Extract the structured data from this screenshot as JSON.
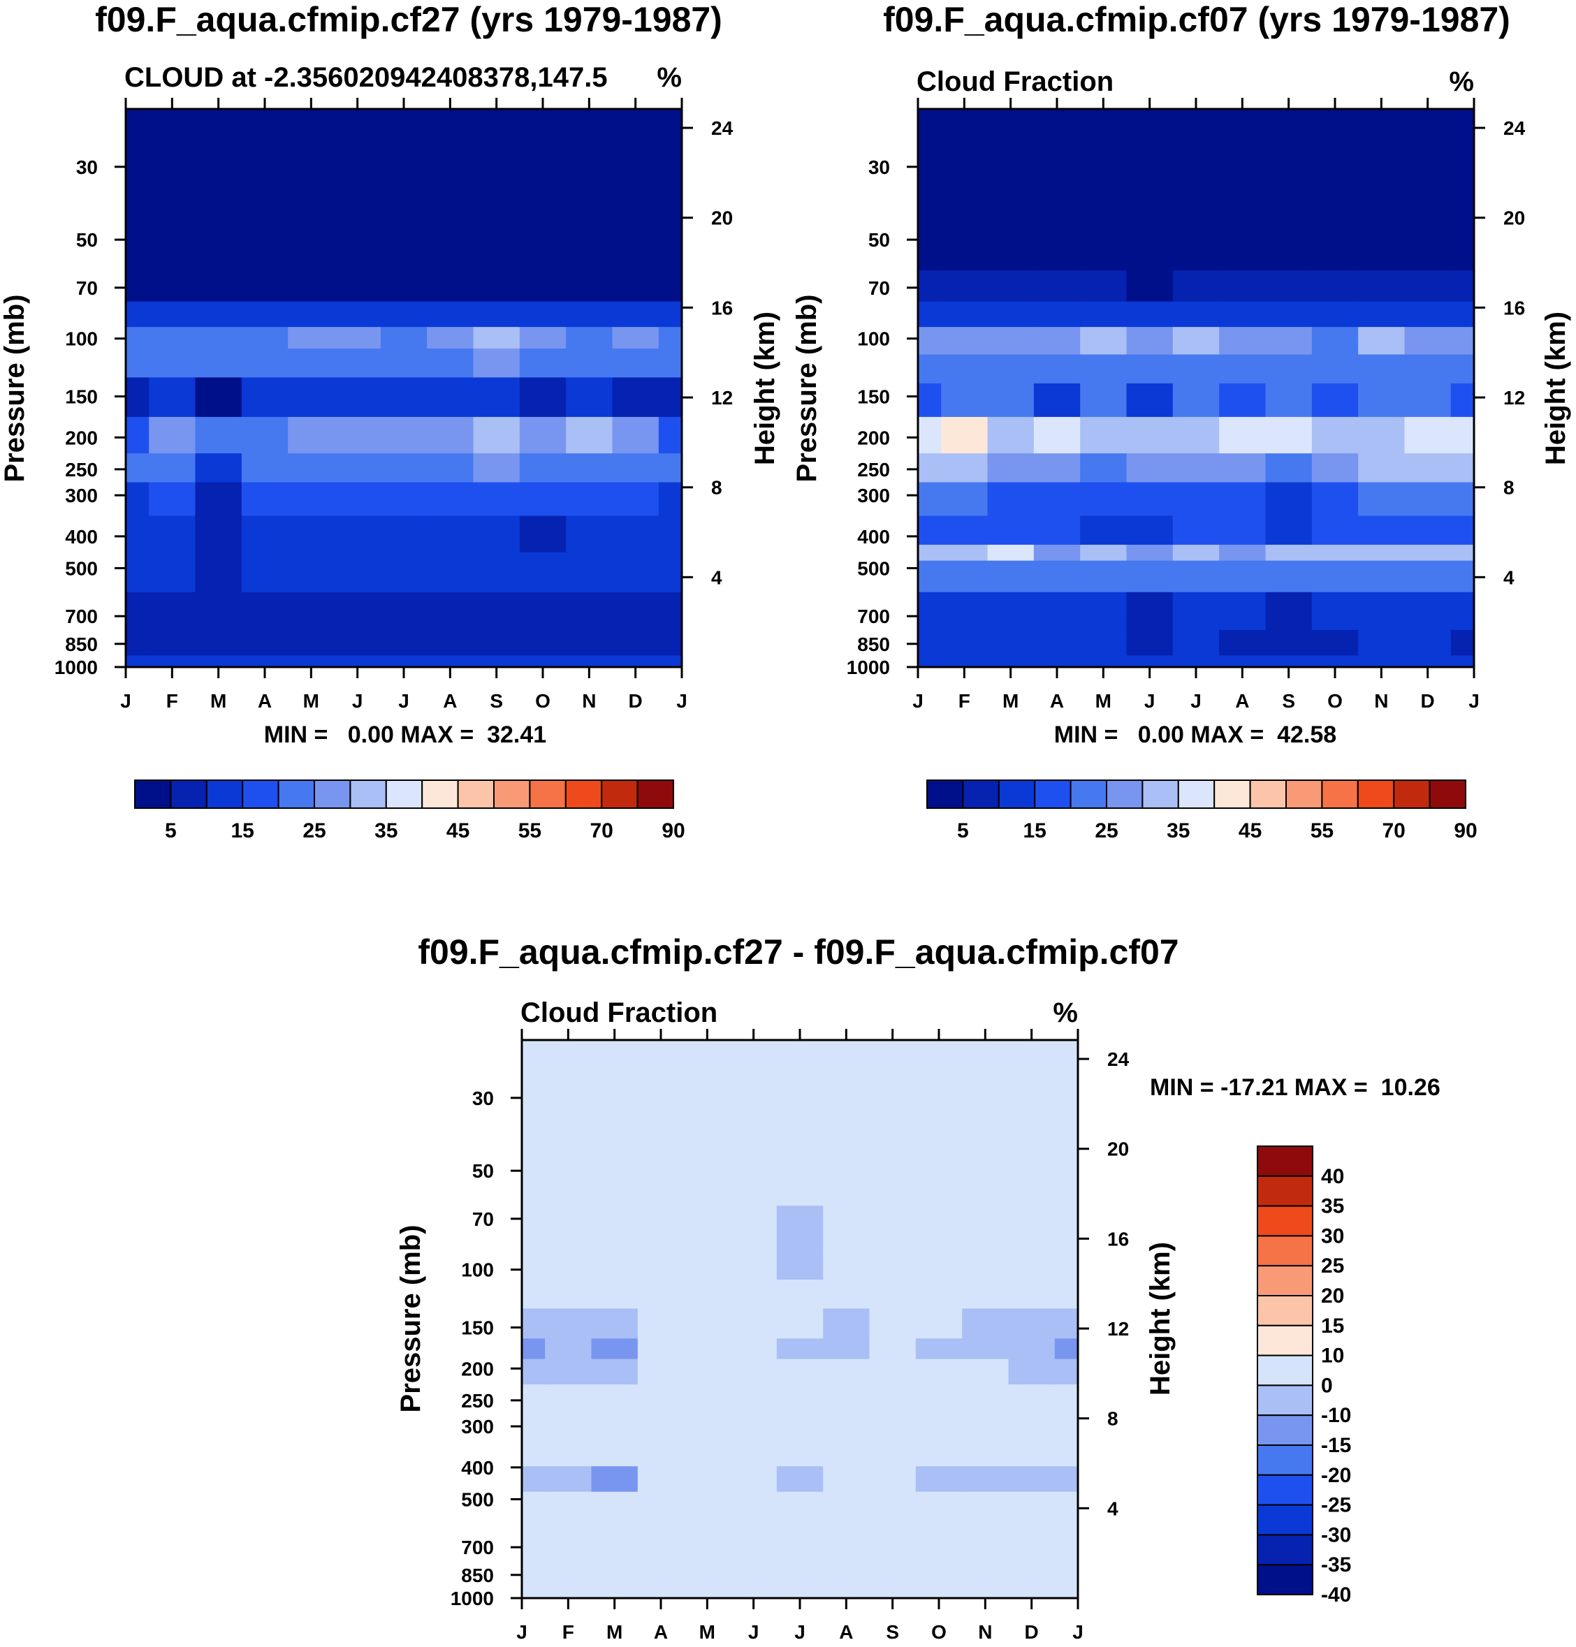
{
  "palette_cloud": [
    "#00108a",
    "#0522b0",
    "#0a39d6",
    "#1e50f0",
    "#4678f0",
    "#7896f0",
    "#a9bff5",
    "#dbe6fc",
    "#fde7d8",
    "#fcc5a9",
    "#f99a77",
    "#f57346",
    "#ee4a1c",
    "#c22a0d",
    "#8f0b0b"
  ],
  "palette_diff": [
    "#00108a",
    "#0522b0",
    "#0a39d6",
    "#1e50f0",
    "#4678f0",
    "#7896f0",
    "#a9bff5",
    "#d5e4fa",
    "#fde7d8",
    "#fcc5a9",
    "#f99a77",
    "#f57346",
    "#ee4a1c",
    "#c22a0d",
    "#8f0b0b"
  ],
  "chart_data": [
    {
      "id": "panel1",
      "type": "contour",
      "title": "f09.F_aqua.cfmip.cf27 (yrs 1979-1987)",
      "subtitle_left": "CLOUD at -2.356020942408378,147.5",
      "subtitle_right": "%",
      "xlabel": "",
      "ylabel": "Pressure (mb)",
      "ylabel_right": "Height (km)",
      "x_ticks": [
        "J",
        "F",
        "M",
        "A",
        "M",
        "J",
        "J",
        "A",
        "S",
        "O",
        "N",
        "D",
        "J"
      ],
      "y_ticks": [
        30,
        50,
        70,
        100,
        150,
        200,
        250,
        300,
        400,
        500,
        700,
        850,
        1000
      ],
      "height_ticks": [
        24,
        20,
        16,
        12,
        8,
        4
      ],
      "ylim": [
        20,
        1000
      ],
      "stats": "MIN =   0.00 MAX =  32.41",
      "min": 0.0,
      "max": 32.41,
      "colorbar_labels": [
        "5",
        "15",
        "25",
        "35",
        "45",
        "55",
        "70",
        "90"
      ],
      "levels": [
        2.5,
        5,
        10,
        15,
        20,
        25,
        30,
        35,
        40,
        45,
        50,
        55,
        60,
        70,
        80,
        90
      ],
      "bands": [
        {
          "p": 20,
          "values": [
            1,
            1,
            1,
            1,
            1,
            1,
            1,
            1,
            1,
            1,
            1,
            1,
            1
          ]
        },
        {
          "p": 70,
          "values": [
            2,
            2,
            2,
            2,
            2,
            2,
            2,
            2,
            2,
            2,
            2,
            2,
            2
          ]
        },
        {
          "p": 85,
          "values": [
            11,
            11,
            11,
            11,
            11,
            11,
            11,
            11,
            11,
            11,
            11,
            11,
            11
          ]
        },
        {
          "p": 100,
          "values": [
            24,
            24,
            22,
            24,
            29,
            26,
            24,
            28,
            31,
            27,
            24,
            28,
            24
          ]
        },
        {
          "p": 115,
          "values": [
            22,
            22,
            20,
            21,
            24,
            22,
            22,
            24,
            25,
            23,
            22,
            24,
            22
          ]
        },
        {
          "p": 150,
          "values": [
            9,
            10,
            3,
            10,
            12,
            12,
            12,
            12,
            11,
            9,
            10,
            7,
            9
          ]
        },
        {
          "p": 200,
          "values": [
            18,
            27,
            20,
            24,
            26,
            25,
            29,
            26,
            31,
            26,
            31,
            25,
            18
          ]
        },
        {
          "p": 250,
          "values": [
            20,
            24,
            14,
            24,
            24,
            24,
            24,
            24,
            25,
            24,
            24,
            24,
            20
          ]
        },
        {
          "p": 300,
          "values": [
            14,
            15,
            9,
            15,
            16,
            16,
            16,
            16,
            16,
            15,
            15,
            15,
            14
          ]
        },
        {
          "p": 400,
          "values": [
            13,
            13,
            8,
            13,
            13,
            13,
            13,
            13,
            13,
            8,
            13,
            13,
            13
          ]
        },
        {
          "p": 500,
          "values": [
            11,
            11,
            8,
            11,
            11,
            11,
            11,
            11,
            11,
            10,
            11,
            11,
            11
          ]
        },
        {
          "p": 700,
          "values": [
            9,
            9,
            6,
            9,
            8,
            9,
            9,
            9,
            7,
            9,
            9,
            9,
            9
          ]
        },
        {
          "p": 850,
          "values": [
            9,
            9,
            6,
            9,
            7,
            9,
            9,
            9,
            6,
            9,
            9,
            9,
            9
          ]
        },
        {
          "p": 1000,
          "values": [
            10,
            10,
            10,
            10,
            10,
            10,
            10,
            10,
            10,
            10,
            10,
            10,
            10
          ]
        }
      ]
    },
    {
      "id": "panel2",
      "type": "contour",
      "title": "f09.F_aqua.cfmip.cf07 (yrs 1979-1987)",
      "subtitle_left": "Cloud Fraction",
      "subtitle_right": "%",
      "xlabel": "",
      "ylabel": "Pressure (mb)",
      "ylabel_right": "Height (km)",
      "x_ticks": [
        "J",
        "F",
        "M",
        "A",
        "M",
        "J",
        "J",
        "A",
        "S",
        "O",
        "N",
        "D",
        "J"
      ],
      "y_ticks": [
        30,
        50,
        70,
        100,
        150,
        200,
        250,
        300,
        400,
        500,
        700,
        850,
        1000
      ],
      "height_ticks": [
        24,
        20,
        16,
        12,
        8,
        4
      ],
      "ylim": [
        20,
        1000
      ],
      "stats": "MIN =   0.00 MAX =  42.58",
      "min": 0.0,
      "max": 42.58,
      "colorbar_labels": [
        "5",
        "15",
        "25",
        "35",
        "45",
        "55",
        "70",
        "90"
      ],
      "levels": [
        2.5,
        5,
        10,
        15,
        20,
        25,
        30,
        35,
        40,
        45,
        50,
        55,
        60,
        70,
        80,
        90
      ],
      "bands": [
        {
          "p": 20,
          "values": [
            1,
            1,
            1,
            1,
            1,
            1,
            1,
            1,
            1,
            1,
            1,
            1,
            1
          ]
        },
        {
          "p": 55,
          "values": [
            2,
            2,
            2,
            2,
            2,
            2,
            2,
            2,
            2,
            2,
            2,
            2,
            2
          ]
        },
        {
          "p": 70,
          "values": [
            6,
            6,
            6,
            6,
            5,
            3,
            6,
            6,
            6,
            6,
            6,
            6,
            6
          ]
        },
        {
          "p": 85,
          "values": [
            13,
            13,
            13,
            13,
            13,
            13,
            13,
            13,
            13,
            13,
            13,
            13,
            13
          ]
        },
        {
          "p": 100,
          "values": [
            27,
            27,
            27,
            27,
            31,
            27,
            31,
            27,
            27,
            24,
            31,
            27,
            27
          ]
        },
        {
          "p": 125,
          "values": [
            20,
            22,
            22,
            22,
            22,
            22,
            22,
            22,
            22,
            22,
            22,
            22,
            20
          ]
        },
        {
          "p": 150,
          "values": [
            16,
            20,
            22,
            14,
            20,
            14,
            20,
            15,
            20,
            15,
            20,
            20,
            16
          ]
        },
        {
          "p": 200,
          "values": [
            36,
            41,
            31,
            38,
            30,
            32,
            34,
            36,
            35,
            33,
            33,
            38,
            37
          ]
        },
        {
          "p": 250,
          "values": [
            31,
            32,
            26,
            26,
            22,
            28,
            28,
            26,
            22,
            26,
            30,
            31,
            31
          ]
        },
        {
          "p": 300,
          "values": [
            20,
            22,
            17,
            19,
            15,
            15,
            17,
            17,
            13,
            18,
            20,
            20,
            20
          ]
        },
        {
          "p": 400,
          "values": [
            18,
            15,
            17,
            18,
            13,
            13,
            15,
            17,
            13,
            15,
            18,
            17,
            18
          ]
        },
        {
          "p": 450,
          "values": [
            30,
            30,
            36,
            26,
            30,
            28,
            32,
            28,
            30,
            32,
            30,
            34,
            30
          ]
        },
        {
          "p": 500,
          "values": [
            22,
            22,
            22,
            20,
            22,
            22,
            22,
            22,
            22,
            22,
            22,
            22,
            22
          ]
        },
        {
          "p": 700,
          "values": [
            12,
            12,
            12,
            12,
            12,
            7,
            12,
            12,
            7,
            12,
            12,
            12,
            12
          ]
        },
        {
          "p": 850,
          "values": [
            11,
            11,
            11,
            11,
            11,
            8,
            11,
            8,
            8,
            8,
            11,
            11,
            8
          ]
        },
        {
          "p": 1000,
          "values": [
            14,
            14,
            14,
            14,
            14,
            14,
            14,
            14,
            14,
            14,
            14,
            14,
            14
          ]
        }
      ]
    },
    {
      "id": "panel3",
      "type": "contour",
      "title": "f09.F_aqua.cfmip.cf27 - f09.F_aqua.cfmip.cf07",
      "subtitle_left": "Cloud Fraction",
      "subtitle_right": "%",
      "xlabel": "",
      "ylabel": "Pressure (mb)",
      "ylabel_right": "Height (km)",
      "x_ticks": [
        "J",
        "F",
        "M",
        "A",
        "M",
        "J",
        "J",
        "A",
        "S",
        "O",
        "N",
        "D",
        "J"
      ],
      "y_ticks": [
        30,
        50,
        70,
        100,
        150,
        200,
        250,
        300,
        400,
        500,
        700,
        850,
        1000
      ],
      "height_ticks": [
        24,
        20,
        16,
        12,
        8,
        4
      ],
      "ylim": [
        20,
        1000
      ],
      "stats": "MIN = -17.21 MAX =  10.26",
      "min": -17.21,
      "max": 10.26,
      "colorbar_labels": [
        "40",
        "35",
        "30",
        "25",
        "20",
        "15",
        "10",
        "0",
        "-10",
        "-15",
        "-20",
        "-25",
        "-30",
        "-35",
        "-40"
      ],
      "levels": [
        -40,
        -35,
        -30,
        -25,
        -20,
        -15,
        -10,
        0,
        10,
        15,
        20,
        25,
        30,
        35,
        40
      ],
      "bands": [
        {
          "p": 20,
          "values": [
            3,
            3,
            3,
            3,
            3,
            3,
            3,
            3,
            3,
            3,
            3,
            3,
            3
          ]
        },
        {
          "p": 49,
          "values": [
            3,
            3,
            3,
            3,
            3,
            3,
            3,
            3,
            3,
            3,
            3,
            3,
            3
          ]
        },
        {
          "p": 51,
          "values": [
            -3,
            -3,
            -3,
            -3,
            -3,
            -3,
            -3,
            -3,
            -3,
            -3,
            -3,
            -3,
            -3
          ]
        },
        {
          "p": 80,
          "values": [
            -3,
            -3,
            -3,
            -3,
            -3,
            -3,
            -12,
            -3,
            -3,
            -3,
            -3,
            -3,
            -3
          ]
        },
        {
          "p": 100,
          "values": [
            4,
            4,
            4,
            4,
            4,
            -3,
            -12,
            -3,
            4,
            4,
            4,
            4,
            4
          ]
        },
        {
          "p": 115,
          "values": [
            3,
            3,
            3,
            3,
            3,
            -3,
            -3,
            -3,
            3,
            3,
            3,
            3,
            3
          ]
        },
        {
          "p": 150,
          "values": [
            -12,
            -12,
            -12,
            -3,
            -3,
            -3,
            -3,
            -12,
            -3,
            -3,
            -12,
            -12,
            -12
          ]
        },
        {
          "p": 175,
          "values": [
            -17,
            -12,
            -16,
            -3,
            -3,
            -3,
            -12,
            -12,
            -3,
            -12,
            -12,
            -12,
            -17
          ]
        },
        {
          "p": 200,
          "values": [
            -12,
            -12,
            -12,
            -3,
            -3,
            -3,
            -3,
            -3,
            -3,
            -3,
            -3,
            -12,
            -12
          ]
        },
        {
          "p": 250,
          "values": [
            -3,
            -3,
            -3,
            3,
            5,
            3,
            -3,
            -3,
            4,
            -3,
            -3,
            -3,
            -3
          ]
        },
        {
          "p": 300,
          "values": [
            -3,
            -3,
            -3,
            3,
            3,
            3,
            -3,
            -3,
            4,
            -3,
            -3,
            -3,
            -3
          ]
        },
        {
          "p": 350,
          "values": [
            -3,
            -3,
            -3,
            -3,
            -3,
            -3,
            -3,
            -3,
            3,
            -3,
            -3,
            -3,
            -3
          ]
        },
        {
          "p": 450,
          "values": [
            -12,
            -12,
            -16,
            -3,
            -3,
            -3,
            -12,
            -3,
            -3,
            -12,
            -12,
            -12,
            -12
          ]
        },
        {
          "p": 500,
          "values": [
            -3,
            -3,
            -3,
            -3,
            -3,
            -3,
            -3,
            -3,
            -3,
            -3,
            -3,
            -3,
            -3
          ]
        },
        {
          "p": 1000,
          "values": [
            -3,
            -3,
            -3,
            -3,
            -3,
            -3,
            -3,
            -3,
            -3,
            -3,
            -3,
            -3,
            -3
          ]
        }
      ]
    }
  ]
}
